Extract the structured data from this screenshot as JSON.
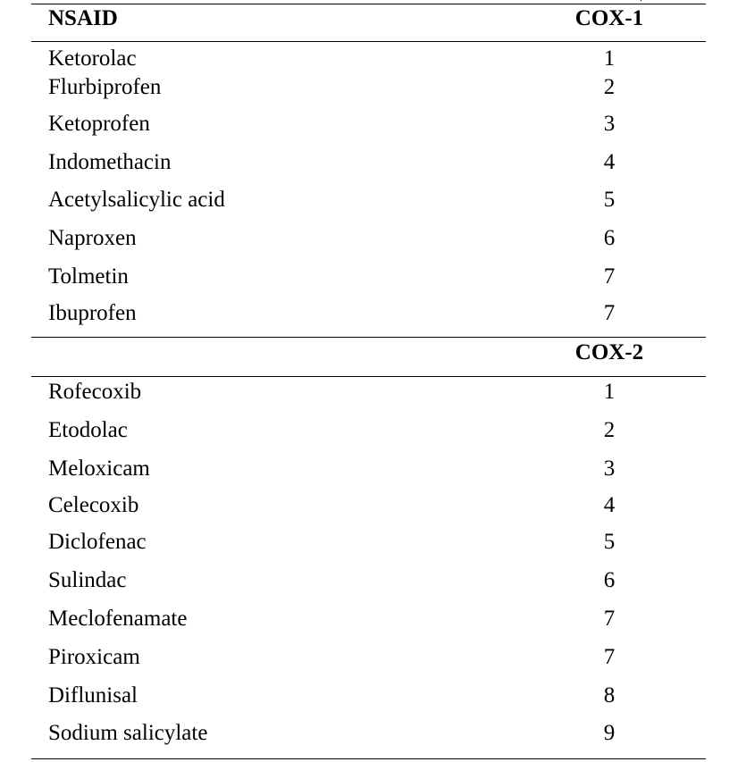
{
  "table": {
    "header": {
      "col1": "NSAID",
      "col2": "COX-1"
    },
    "section1": [
      {
        "name": "Ketorolac",
        "value": "1"
      },
      {
        "name": "Flurbiprofen",
        "value": "2"
      },
      {
        "name": "Ketoprofen",
        "value": "3"
      },
      {
        "name": "Indomethacin",
        "value": "4"
      },
      {
        "name": "Acetylsalicylic acid",
        "value": "5"
      },
      {
        "name": "Naproxen",
        "value": "6"
      },
      {
        "name": "Tolmetin",
        "value": "7"
      },
      {
        "name": "Ibuprofen",
        "value": "7"
      }
    ],
    "section2_header": "COX-2",
    "section2": [
      {
        "name": "Rofecoxib",
        "value": "1"
      },
      {
        "name": "Etodolac",
        "value": "2"
      },
      {
        "name": "Meloxicam",
        "value": "3"
      },
      {
        "name": "Celecoxib",
        "value": "4"
      },
      {
        "name": "Diclofenac",
        "value": "5"
      },
      {
        "name": "Sulindac",
        "value": "6"
      },
      {
        "name": "Meclofenamate",
        "value": "7"
      },
      {
        "name": "Piroxicam",
        "value": "7"
      },
      {
        "name": "Diflunisal",
        "value": "8"
      },
      {
        "name": "Sodium salicylate",
        "value": "9"
      }
    ]
  }
}
